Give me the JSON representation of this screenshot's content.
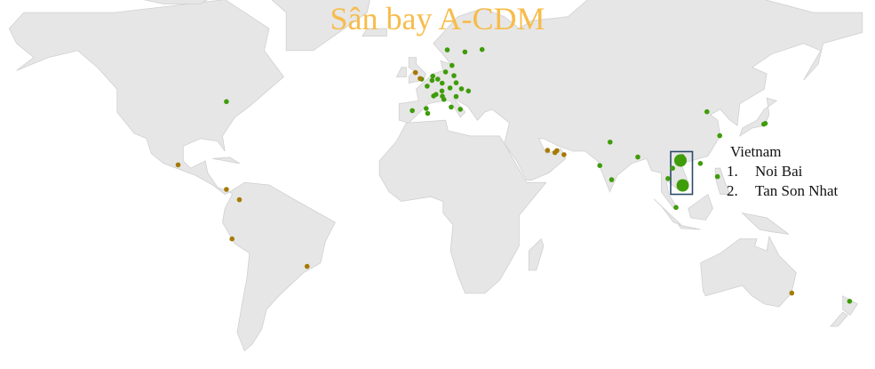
{
  "title": "Sân bay A-CDM",
  "colors": {
    "land": "#e6e6e6",
    "border": "#d0d0d0",
    "green": "#3f9c0a",
    "brown": "#a67a05",
    "title": "#f7bc4a",
    "highlight_box": "#2b4a6b"
  },
  "legend": {
    "heading": "Vietnam",
    "items": [
      {
        "num": "1.",
        "name": "Noi Bai"
      },
      {
        "num": "2.",
        "name": "Tan Son Nhat"
      }
    ]
  },
  "airports": [
    {
      "lon": 105.8,
      "lat": 21.2,
      "color": "green",
      "size": "large"
    },
    {
      "lon": 106.7,
      "lat": 10.8,
      "color": "green",
      "size": "large"
    },
    {
      "lon": -79.4,
      "lat": 43.7,
      "color": "green"
    },
    {
      "lon": 10.7,
      "lat": 60.2,
      "color": "green"
    },
    {
      "lon": 17.9,
      "lat": 59.6,
      "color": "green"
    },
    {
      "lon": 24.9,
      "lat": 60.3,
      "color": "green"
    },
    {
      "lon": 12.6,
      "lat": 55.6,
      "color": "green"
    },
    {
      "lon": 10.0,
      "lat": 53.6,
      "color": "green"
    },
    {
      "lon": 13.4,
      "lat": 52.4,
      "color": "green"
    },
    {
      "lon": 4.8,
      "lat": 52.3,
      "color": "green"
    },
    {
      "lon": 0.2,
      "lat": 51.3,
      "color": "green"
    },
    {
      "lon": 4.5,
      "lat": 50.9,
      "color": "green"
    },
    {
      "lon": 2.5,
      "lat": 49.0,
      "color": "green"
    },
    {
      "lon": 8.6,
      "lat": 50.0,
      "color": "green"
    },
    {
      "lon": 6.8,
      "lat": 51.3,
      "color": "green"
    },
    {
      "lon": 14.3,
      "lat": 50.1,
      "color": "green"
    },
    {
      "lon": 16.5,
      "lat": 48.1,
      "color": "green"
    },
    {
      "lon": 11.8,
      "lat": 48.4,
      "color": "green"
    },
    {
      "lon": 8.5,
      "lat": 47.4,
      "color": "green"
    },
    {
      "lon": 6.1,
      "lat": 46.2,
      "color": "green"
    },
    {
      "lon": 5.1,
      "lat": 45.7,
      "color": "green"
    },
    {
      "lon": 8.7,
      "lat": 45.6,
      "color": "green"
    },
    {
      "lon": 9.3,
      "lat": 44.5,
      "color": "green"
    },
    {
      "lon": 19.3,
      "lat": 47.4,
      "color": "green"
    },
    {
      "lon": 14.3,
      "lat": 45.5,
      "color": "green"
    },
    {
      "lon": 12.3,
      "lat": 41.8,
      "color": "green"
    },
    {
      "lon": 16.0,
      "lat": 41.0,
      "color": "green"
    },
    {
      "lon": -3.6,
      "lat": 40.5,
      "color": "green"
    },
    {
      "lon": 2.1,
      "lat": 41.3,
      "color": "green"
    },
    {
      "lon": 2.7,
      "lat": 39.5,
      "color": "green"
    },
    {
      "lon": 77.1,
      "lat": 28.6,
      "color": "green"
    },
    {
      "lon": 72.9,
      "lat": 19.1,
      "color": "green"
    },
    {
      "lon": 77.7,
      "lat": 13.2,
      "color": "green"
    },
    {
      "lon": 88.4,
      "lat": 22.6,
      "color": "green"
    },
    {
      "lon": 102.6,
      "lat": 18.0,
      "color": "green"
    },
    {
      "lon": 106.5,
      "lat": 22.8,
      "color": "green"
    },
    {
      "lon": 113.9,
      "lat": 20.0,
      "color": "green"
    },
    {
      "lon": 100.7,
      "lat": 13.7,
      "color": "green"
    },
    {
      "lon": 104.0,
      "lat": 1.4,
      "color": "green"
    },
    {
      "lon": 116.6,
      "lat": 40.1,
      "color": "green"
    },
    {
      "lon": 121.8,
      "lat": 31.1,
      "color": "green"
    },
    {
      "lon": 120.9,
      "lat": 14.5,
      "color": "green"
    },
    {
      "lon": 139.8,
      "lat": 35.5,
      "color": "green"
    },
    {
      "lon": 140.4,
      "lat": 35.8,
      "color": "green"
    },
    {
      "lon": 174.8,
      "lat": -37.0,
      "color": "green"
    },
    {
      "lon": -2.3,
      "lat": 53.4,
      "color": "brown"
    },
    {
      "lon": -0.4,
      "lat": 51.5,
      "color": "brown"
    },
    {
      "lon": 51.6,
      "lat": 25.3,
      "color": "brown"
    },
    {
      "lon": 55.4,
      "lat": 25.2,
      "color": "brown"
    },
    {
      "lon": 54.6,
      "lat": 24.4,
      "color": "brown"
    },
    {
      "lon": 58.3,
      "lat": 23.6,
      "color": "brown"
    },
    {
      "lon": -99.1,
      "lat": 19.4,
      "color": "brown"
    },
    {
      "lon": -79.4,
      "lat": 9.1,
      "color": "brown"
    },
    {
      "lon": -74.1,
      "lat": 4.7,
      "color": "brown"
    },
    {
      "lon": -77.1,
      "lat": -12.0,
      "color": "brown"
    },
    {
      "lon": -46.5,
      "lat": -23.4,
      "color": "brown"
    },
    {
      "lon": 151.2,
      "lat": -33.9,
      "color": "brown"
    }
  ]
}
